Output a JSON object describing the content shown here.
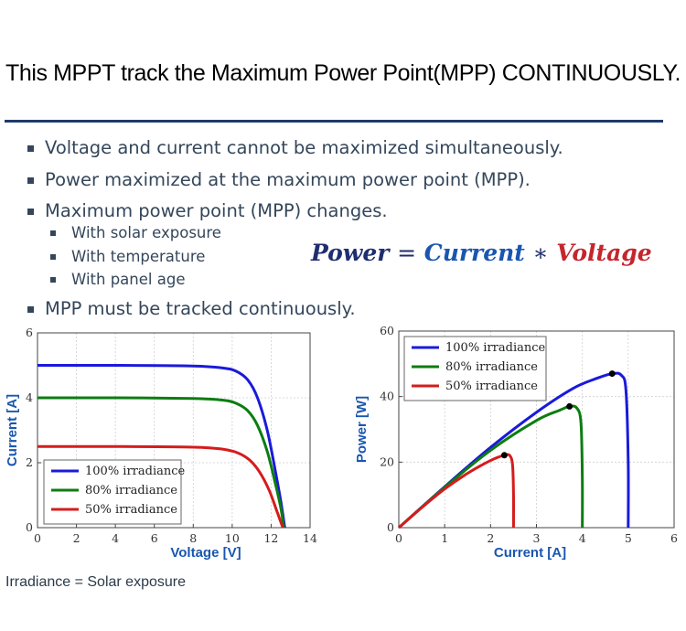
{
  "title": "This MPPT track the Maximum Power Point(MPP) CONTINUOUSLY.",
  "bullets_main": [
    "Voltage and current cannot be maximized simultaneously.",
    "Power maximized at the maximum power point (MPP).",
    "Maximum power point (MPP) changes."
  ],
  "bullets_sub": [
    "With solar exposure",
    "With temperature",
    "With panel age"
  ],
  "bullets_last": "MPP must be tracked continuously.",
  "equation": {
    "power": "Power",
    "eq": "=",
    "current": "Current",
    "mul": "∗",
    "voltage": "Voltage"
  },
  "footer": "Irradiance = Solar exposure",
  "colors": {
    "blue": "#1a1adb",
    "green": "#0c7d10",
    "red": "#d41c1c",
    "accent": "#1a56b0"
  },
  "chart_data": [
    {
      "type": "line",
      "xlabel": "Voltage [V]",
      "ylabel": "Current [A]",
      "xlim": [
        0,
        14
      ],
      "ylim": [
        0,
        6
      ],
      "xticks": [
        "0",
        "2",
        "4",
        "6",
        "8",
        "10",
        "12",
        "14"
      ],
      "yticks": [
        "0",
        "2",
        "4",
        "6"
      ],
      "grid": true,
      "legend_position": "bottom-left",
      "series": [
        {
          "name": "100% irradiance",
          "color": "#1a1adb",
          "points": [
            [
              0,
              5.0
            ],
            [
              4,
              5.0
            ],
            [
              8,
              4.98
            ],
            [
              9.5,
              4.92
            ],
            [
              10.2,
              4.82
            ],
            [
              10.8,
              4.55
            ],
            [
              11.3,
              4.0
            ],
            [
              11.8,
              3.0
            ],
            [
              12.2,
              1.8
            ],
            [
              12.5,
              0.8
            ],
            [
              12.7,
              0.0
            ]
          ]
        },
        {
          "name": "80% irradiance",
          "color": "#0c7d10",
          "points": [
            [
              0,
              4.0
            ],
            [
              4,
              4.0
            ],
            [
              8,
              3.98
            ],
            [
              9.5,
              3.93
            ],
            [
              10.2,
              3.83
            ],
            [
              10.8,
              3.6
            ],
            [
              11.3,
              3.15
            ],
            [
              11.8,
              2.35
            ],
            [
              12.2,
              1.4
            ],
            [
              12.5,
              0.6
            ],
            [
              12.65,
              0.0
            ]
          ]
        },
        {
          "name": "50% irradiance",
          "color": "#d41c1c",
          "points": [
            [
              0,
              2.5
            ],
            [
              4,
              2.5
            ],
            [
              8,
              2.48
            ],
            [
              9.5,
              2.42
            ],
            [
              10.3,
              2.3
            ],
            [
              10.9,
              2.08
            ],
            [
              11.4,
              1.72
            ],
            [
              11.9,
              1.15
            ],
            [
              12.3,
              0.5
            ],
            [
              12.6,
              0.0
            ]
          ]
        }
      ]
    },
    {
      "type": "line",
      "xlabel": "Current [A]",
      "ylabel": "Power [W]",
      "xlim": [
        0,
        6
      ],
      "ylim": [
        0,
        60
      ],
      "xticks": [
        "0",
        "1",
        "2",
        "3",
        "4",
        "5",
        "6"
      ],
      "yticks": [
        "0",
        "20",
        "40",
        "60"
      ],
      "grid": true,
      "legend_position": "top-left",
      "series": [
        {
          "name": "100% irradiance",
          "color": "#1a1adb",
          "points": [
            [
              0,
              0
            ],
            [
              1,
              12.5
            ],
            [
              2,
              24.5
            ],
            [
              3,
              35.2
            ],
            [
              3.8,
              42.5
            ],
            [
              4.3,
              45.5
            ],
            [
              4.65,
              47.0
            ],
            [
              4.85,
              46.5
            ],
            [
              4.95,
              42.0
            ],
            [
              5.0,
              20.0
            ],
            [
              5.0,
              0
            ]
          ],
          "mpp": [
            4.65,
            47.0
          ]
        },
        {
          "name": "80% irradiance",
          "color": "#0c7d10",
          "points": [
            [
              0,
              0
            ],
            [
              1,
              12.3
            ],
            [
              2,
              23.6
            ],
            [
              3,
              32.7
            ],
            [
              3.5,
              35.8
            ],
            [
              3.72,
              37.0
            ],
            [
              3.88,
              36.5
            ],
            [
              3.97,
              32.0
            ],
            [
              4.0,
              15.0
            ],
            [
              4.0,
              0
            ]
          ],
          "mpp": [
            3.72,
            37.0
          ]
        },
        {
          "name": "50% irradiance",
          "color": "#d41c1c",
          "points": [
            [
              0,
              0
            ],
            [
              0.5,
              6.1
            ],
            [
              1,
              11.8
            ],
            [
              1.5,
              16.6
            ],
            [
              2.0,
              20.5
            ],
            [
              2.3,
              22.1
            ],
            [
              2.42,
              22.0
            ],
            [
              2.48,
              19.0
            ],
            [
              2.5,
              10.0
            ],
            [
              2.5,
              0
            ]
          ],
          "mpp": [
            2.3,
            22.1
          ]
        }
      ]
    }
  ]
}
